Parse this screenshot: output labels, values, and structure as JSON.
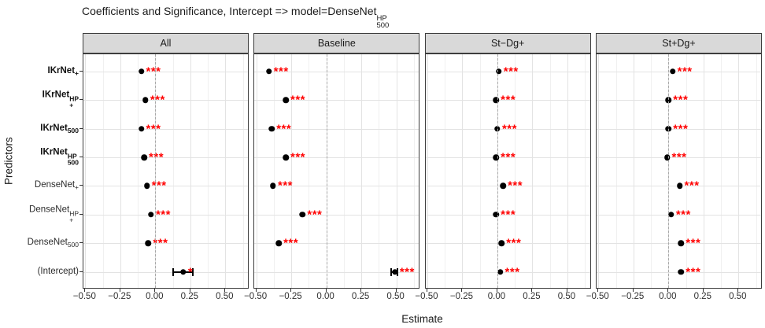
{
  "header": {
    "title_text": "Coefficients and Significance, Intercept => model=DenseNet",
    "title_sup": "HP",
    "title_sub": "500"
  },
  "axes": {
    "x_label": "Estimate",
    "y_label": "Predictors"
  },
  "colors": {
    "point": "#000000",
    "significance": "#FF0000",
    "strip_bg": "#D9D9D9",
    "panel_border": "#3D3D3D",
    "grid_major": "#E3E3E3",
    "grid_minor": "#F0F0F0",
    "zero_line": "#A8A8A8"
  },
  "chart_data": {
    "type": "scatter",
    "title": "Coefficients and Significance, Intercept => model=DenseNet^HP_500",
    "xlabel": "Estimate",
    "ylabel": "Predictors",
    "xlim": [
      -0.515,
      0.67
    ],
    "x_major_ticks": [
      -0.5,
      -0.25,
      0,
      0.25,
      0.5
    ],
    "x_tick_labels": [
      "−0.50",
      "−0.25",
      "0.00",
      "0.25",
      "0.50"
    ],
    "x_minor_ticks": [
      -0.375,
      -0.125,
      0.125,
      0.375,
      0.625
    ],
    "zero_reference_line": 0,
    "grid": true,
    "legend": false,
    "predictors": [
      {
        "base": "IKrNet",
        "sup": "",
        "sub": "+",
        "bold": true
      },
      {
        "base": "IKrNet",
        "sup": "HP",
        "sub": "+",
        "bold": true
      },
      {
        "base": "IKrNet",
        "sup": "",
        "sub": "500",
        "bold": true
      },
      {
        "base": "IKrNet",
        "sup": "HP",
        "sub": "500",
        "bold": true
      },
      {
        "base": "DenseNet",
        "sup": "",
        "sub": "+",
        "bold": false
      },
      {
        "base": "DenseNet",
        "sup": "HP",
        "sub": "+",
        "bold": false
      },
      {
        "base": "DenseNet",
        "sup": "",
        "sub": "500",
        "bold": false
      },
      {
        "base": "(Intercept)",
        "sup": "",
        "sub": "",
        "bold": false
      }
    ],
    "facets": [
      {
        "label": "All",
        "points": [
          {
            "est": -0.1,
            "sig": "***"
          },
          {
            "est": -0.07,
            "sig": "***"
          },
          {
            "est": -0.1,
            "sig": "***"
          },
          {
            "est": -0.08,
            "sig": "***"
          },
          {
            "est": -0.06,
            "sig": "***"
          },
          {
            "est": -0.03,
            "sig": "***"
          },
          {
            "est": -0.05,
            "sig": "***"
          },
          {
            "est": 0.2,
            "ci": [
              0.13,
              0.27
            ],
            "sig": "*"
          }
        ]
      },
      {
        "label": "Baseline",
        "points": [
          {
            "est": -0.41,
            "sig": "***"
          },
          {
            "est": -0.29,
            "sig": "***"
          },
          {
            "est": -0.39,
            "sig": "***"
          },
          {
            "est": -0.29,
            "sig": "***"
          },
          {
            "est": -0.38,
            "sig": "***"
          },
          {
            "est": -0.17,
            "sig": "***"
          },
          {
            "est": -0.34,
            "sig": "***"
          },
          {
            "est": 0.49,
            "ci": [
              0.46,
              0.51
            ],
            "sig": "***"
          }
        ]
      },
      {
        "label": "St−Dg+",
        "points": [
          {
            "est": 0.01,
            "sig": "***"
          },
          {
            "est": -0.01,
            "sig": "***"
          },
          {
            "est": 0.0,
            "sig": "***"
          },
          {
            "est": -0.01,
            "sig": "***"
          },
          {
            "est": 0.04,
            "sig": "***"
          },
          {
            "est": -0.01,
            "sig": "***"
          },
          {
            "est": 0.03,
            "sig": "***"
          },
          {
            "est": 0.02,
            "sig": "***"
          }
        ]
      },
      {
        "label": "St+Dg+",
        "points": [
          {
            "est": 0.03,
            "sig": "***"
          },
          {
            "est": 0.0,
            "sig": "***"
          },
          {
            "est": 0.0,
            "sig": "***"
          },
          {
            "est": -0.01,
            "sig": "***"
          },
          {
            "est": 0.08,
            "sig": "***"
          },
          {
            "est": 0.02,
            "sig": "***"
          },
          {
            "est": 0.09,
            "sig": "***"
          },
          {
            "est": 0.09,
            "sig": "***"
          }
        ]
      }
    ]
  }
}
